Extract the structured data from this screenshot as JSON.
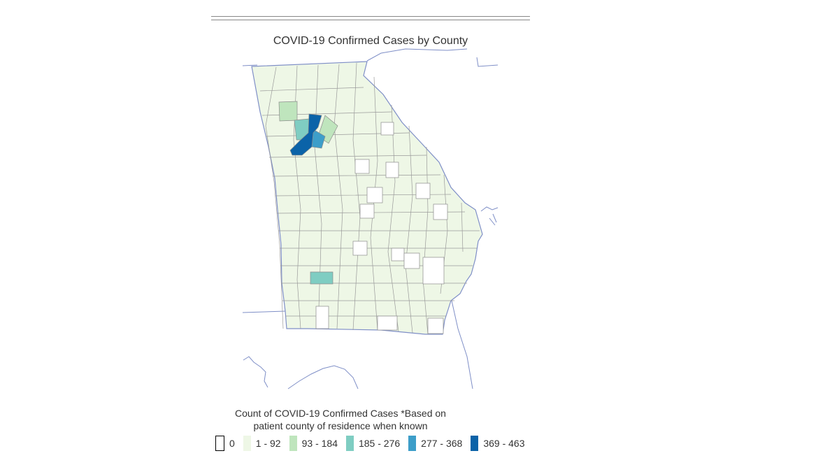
{
  "map": {
    "title": "COVID-19 Confirmed Cases by County",
    "legend": {
      "title_line1": "Count of COVID-19 Confirmed Cases *Based on",
      "title_line2": "patient county of residence when known",
      "items": [
        {
          "label": "0",
          "color": "#ffffff",
          "outlined": true
        },
        {
          "label": "1 - 92",
          "color": "#eef7e6"
        },
        {
          "label": "93 - 184",
          "color": "#bfe5bd"
        },
        {
          "label": "185 - 276",
          "color": "#7fcdc2"
        },
        {
          "label": "277 - 368",
          "color": "#3d9ec9"
        },
        {
          "label": "369 - 463",
          "color": "#0b63a8"
        }
      ]
    },
    "colors": {
      "state_outline": "#7f8fc7",
      "county_border": "#8c8c8c",
      "base_fill": "#eef7e6",
      "zero_fill": "#ffffff"
    }
  }
}
